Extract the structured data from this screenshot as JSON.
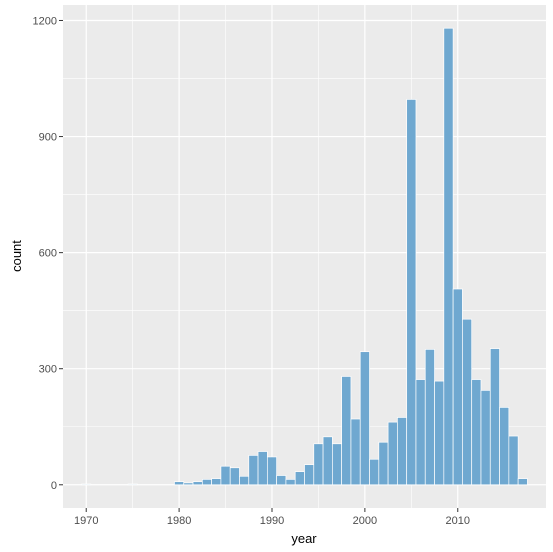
{
  "chart_data": {
    "type": "bar",
    "xlabel": "year",
    "ylabel": "count",
    "xlim": [
      1967.5,
      2019.5
    ],
    "ylim": [
      -60,
      1240
    ],
    "x_ticks": [
      1970,
      1980,
      1990,
      2000,
      2010
    ],
    "x_tick_labels": [
      "1970",
      "1980",
      "1990",
      "2000",
      "2010"
    ],
    "y_ticks": [
      0,
      300,
      600,
      900,
      1200
    ],
    "y_tick_labels": [
      "0",
      "300",
      "600",
      "900",
      "1200"
    ],
    "grid": true,
    "bar_color": "#6fa8d0",
    "panel_color": "#ebebeb",
    "grid_color": "#ffffff",
    "bars": [
      {
        "x": 1970,
        "y": 2
      },
      {
        "x": 1975,
        "y": 2
      },
      {
        "x": 1980,
        "y": 8
      },
      {
        "x": 1981,
        "y": 5
      },
      {
        "x": 1982,
        "y": 8
      },
      {
        "x": 1983,
        "y": 14
      },
      {
        "x": 1984,
        "y": 16
      },
      {
        "x": 1985,
        "y": 48
      },
      {
        "x": 1986,
        "y": 44
      },
      {
        "x": 1987,
        "y": 22
      },
      {
        "x": 1988,
        "y": 76
      },
      {
        "x": 1989,
        "y": 86
      },
      {
        "x": 1990,
        "y": 72
      },
      {
        "x": 1991,
        "y": 24
      },
      {
        "x": 1992,
        "y": 14
      },
      {
        "x": 1993,
        "y": 34
      },
      {
        "x": 1994,
        "y": 52
      },
      {
        "x": 1995,
        "y": 106
      },
      {
        "x": 1996,
        "y": 124
      },
      {
        "x": 1997,
        "y": 106
      },
      {
        "x": 1998,
        "y": 280
      },
      {
        "x": 1999,
        "y": 170
      },
      {
        "x": 2000,
        "y": 344
      },
      {
        "x": 2001,
        "y": 66
      },
      {
        "x": 2002,
        "y": 110
      },
      {
        "x": 2003,
        "y": 162
      },
      {
        "x": 2004,
        "y": 174
      },
      {
        "x": 2005,
        "y": 996
      },
      {
        "x": 2006,
        "y": 272
      },
      {
        "x": 2007,
        "y": 350
      },
      {
        "x": 2008,
        "y": 268
      },
      {
        "x": 2009,
        "y": 1180
      },
      {
        "x": 2010,
        "y": 506
      },
      {
        "x": 2011,
        "y": 428
      },
      {
        "x": 2012,
        "y": 272
      },
      {
        "x": 2013,
        "y": 244
      },
      {
        "x": 2014,
        "y": 352
      },
      {
        "x": 2015,
        "y": 200
      },
      {
        "x": 2016,
        "y": 126
      },
      {
        "x": 2017,
        "y": 16
      }
    ]
  }
}
